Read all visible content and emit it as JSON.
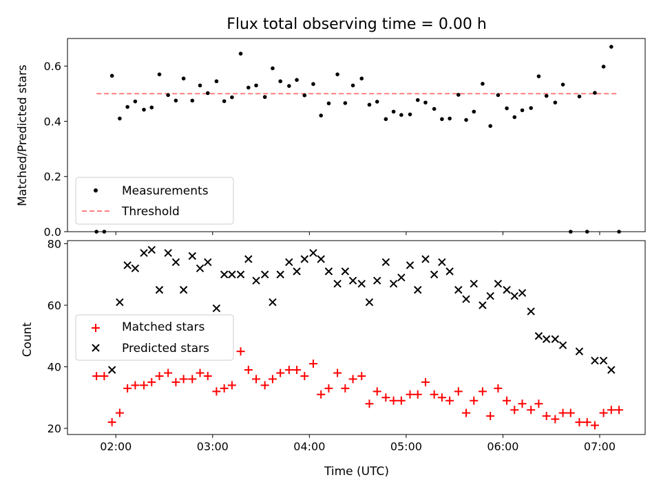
{
  "chart_data": [
    {
      "type": "scatter",
      "title": "Flux total observing time = 0.00 h",
      "xlabel": "",
      "ylabel": "Matched/Predicted stars",
      "xlim": [
        1.5,
        7.47
      ],
      "ylim": [
        0,
        0.7
      ],
      "yticks": [
        0.0,
        0.2,
        0.4,
        0.6
      ],
      "ytick_labels": [
        "0.0",
        "0.2",
        "0.4",
        "0.6"
      ],
      "legend": {
        "position": "lower-left",
        "entries": [
          "Measurements",
          "Threshold"
        ]
      },
      "threshold": {
        "name": "Threshold",
        "y": 0.5,
        "x_start": 1.8,
        "x_end": 7.2,
        "color": "#ff7f7f"
      },
      "series": [
        {
          "name": "Measurements",
          "color": "#000000",
          "x": [
            1.8,
            1.88,
            1.96,
            2.04,
            2.12,
            2.2,
            2.29,
            2.37,
            2.45,
            2.54,
            2.62,
            2.7,
            2.79,
            2.87,
            2.95,
            3.04,
            3.12,
            3.2,
            3.29,
            3.37,
            3.45,
            3.54,
            3.62,
            3.7,
            3.79,
            3.87,
            3.95,
            4.04,
            4.12,
            4.2,
            4.29,
            4.37,
            4.45,
            4.54,
            4.62,
            4.7,
            4.79,
            4.87,
            4.95,
            5.04,
            5.12,
            5.2,
            5.29,
            5.37,
            5.45,
            5.54,
            5.62,
            5.7,
            5.79,
            5.87,
            5.95,
            6.04,
            6.12,
            6.2,
            6.29,
            6.37,
            6.45,
            6.54,
            6.62,
            6.7,
            6.79,
            6.87,
            6.95,
            7.04,
            7.12,
            7.2
          ],
          "y": [
            0.0,
            0.0,
            0.565,
            0.41,
            0.452,
            0.472,
            0.442,
            0.45,
            0.57,
            0.495,
            0.475,
            0.555,
            0.475,
            0.53,
            0.502,
            0.545,
            0.473,
            0.487,
            0.645,
            0.522,
            0.53,
            0.488,
            0.592,
            0.545,
            0.528,
            0.55,
            0.494,
            0.535,
            0.421,
            0.465,
            0.57,
            0.466,
            0.53,
            0.555,
            0.46,
            0.471,
            0.408,
            0.435,
            0.423,
            0.425,
            0.477,
            0.468,
            0.445,
            0.408,
            0.41,
            0.496,
            0.405,
            0.435,
            0.536,
            0.383,
            0.495,
            0.447,
            0.415,
            0.44,
            0.448,
            0.563,
            0.492,
            0.468,
            0.533,
            0.0,
            0.49,
            0.0,
            0.503,
            0.598,
            0.67,
            0.0
          ]
        }
      ]
    },
    {
      "type": "scatter",
      "title": "",
      "xlabel": "Time (UTC)",
      "ylabel": "Count",
      "xlim": [
        1.5,
        7.47
      ],
      "ylim": [
        18,
        81
      ],
      "xticks": [
        2,
        3,
        4,
        5,
        6,
        7
      ],
      "xtick_labels": [
        "02:00",
        "03:00",
        "04:00",
        "05:00",
        "06:00",
        "07:00"
      ],
      "yticks": [
        20,
        40,
        60,
        80
      ],
      "ytick_labels": [
        "20",
        "40",
        "60",
        "80"
      ],
      "legend": {
        "position": "center-left",
        "entries": [
          "Matched stars",
          "Predicted stars"
        ]
      },
      "series": [
        {
          "name": "Matched stars",
          "marker": "plus",
          "color": "#ff0000",
          "x": [
            1.8,
            1.88,
            1.96,
            2.04,
            2.12,
            2.2,
            2.29,
            2.37,
            2.45,
            2.54,
            2.62,
            2.7,
            2.79,
            2.87,
            2.95,
            3.04,
            3.12,
            3.2,
            3.29,
            3.37,
            3.45,
            3.54,
            3.62,
            3.7,
            3.79,
            3.87,
            3.95,
            4.04,
            4.12,
            4.2,
            4.29,
            4.37,
            4.45,
            4.54,
            4.62,
            4.7,
            4.79,
            4.87,
            4.95,
            5.04,
            5.12,
            5.2,
            5.29,
            5.37,
            5.45,
            5.54,
            5.62,
            5.7,
            5.79,
            5.87,
            5.95,
            6.04,
            6.12,
            6.2,
            6.29,
            6.37,
            6.45,
            6.54,
            6.62,
            6.7,
            6.79,
            6.87,
            6.95,
            7.04,
            7.12,
            7.2
          ],
          "y": [
            37,
            37,
            22,
            25,
            33,
            34,
            34,
            35,
            37,
            38,
            35,
            36,
            36,
            38,
            37,
            32,
            33,
            34,
            45,
            39,
            36,
            34,
            36,
            38,
            39,
            39,
            37,
            41,
            31,
            33,
            38,
            33,
            36,
            37,
            28,
            32,
            30,
            29,
            29,
            31,
            31,
            35,
            31,
            30,
            29,
            32,
            25,
            29,
            32,
            24,
            33,
            29,
            26,
            28,
            26,
            28,
            24,
            23,
            25,
            25,
            22,
            22,
            21,
            25,
            26,
            26
          ]
        },
        {
          "name": "Predicted stars",
          "marker": "x",
          "color": "#000000",
          "x": [
            1.96,
            2.04,
            2.12,
            2.2,
            2.29,
            2.37,
            2.45,
            2.54,
            2.62,
            2.7,
            2.79,
            2.87,
            2.95,
            3.04,
            3.12,
            3.2,
            3.29,
            3.37,
            3.45,
            3.54,
            3.62,
            3.7,
            3.79,
            3.87,
            3.95,
            4.04,
            4.12,
            4.2,
            4.29,
            4.37,
            4.45,
            4.54,
            4.62,
            4.7,
            4.79,
            4.87,
            4.95,
            5.04,
            5.12,
            5.2,
            5.29,
            5.37,
            5.45,
            5.54,
            5.62,
            5.7,
            5.79,
            5.87,
            5.95,
            6.04,
            6.12,
            6.2,
            6.29,
            6.37,
            6.45,
            6.54,
            6.62,
            6.79,
            6.95,
            7.04,
            7.12
          ],
          "y": [
            39,
            61,
            73,
            72,
            77,
            78,
            65,
            77,
            74,
            65,
            76,
            72,
            74,
            59,
            70,
            70,
            70,
            75,
            68,
            70,
            61,
            70,
            74,
            71,
            75,
            77,
            75,
            71,
            67,
            71,
            68,
            67,
            61,
            68,
            74,
            67,
            69,
            73,
            65,
            75,
            70,
            74,
            71,
            65,
            62,
            67,
            60,
            63,
            67,
            65,
            63,
            64,
            58,
            50,
            49,
            49,
            47,
            45,
            42,
            42,
            39
          ]
        }
      ]
    }
  ]
}
